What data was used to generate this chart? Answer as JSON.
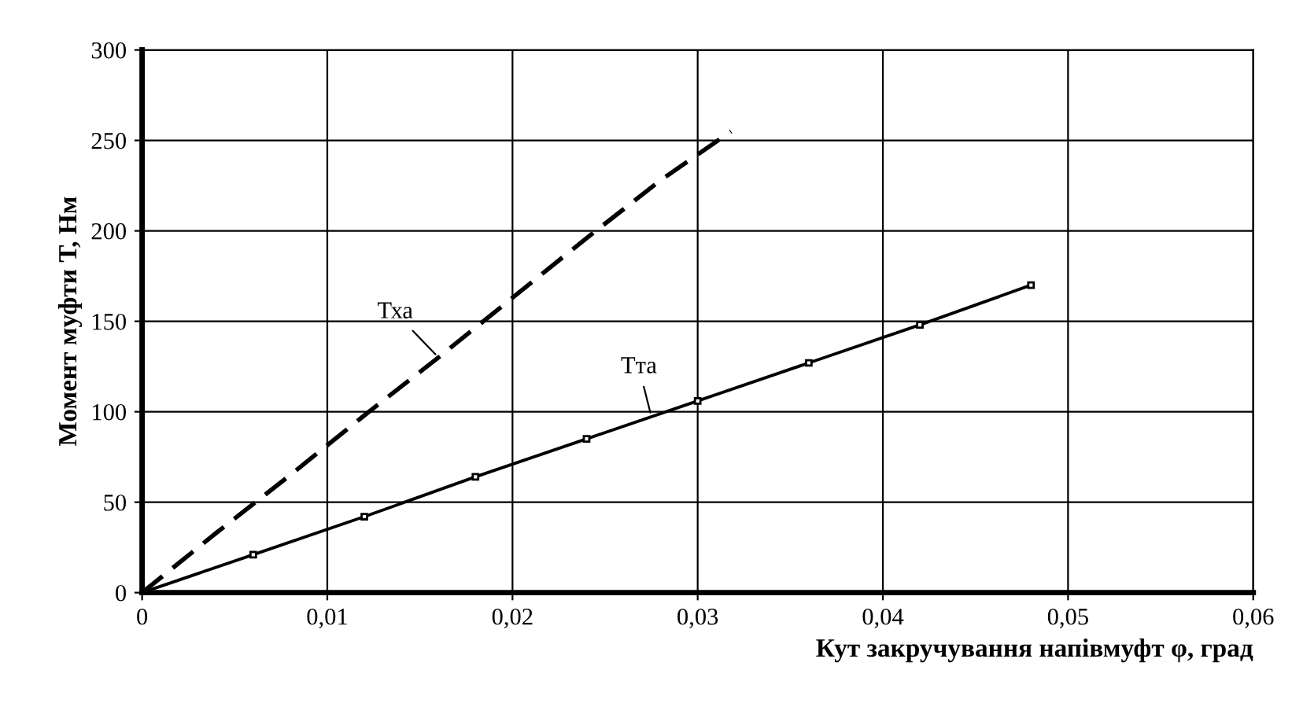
{
  "chart_data": {
    "type": "line",
    "xlabel": "Кут закручування напівмуфт φ, град",
    "ylabel": "Момент муфти Т, Нм",
    "series": [
      {
        "name": "Тха",
        "color": "#000000",
        "line_style": "dashed",
        "marker": "none",
        "x": [
          0,
          0.004,
          0.008,
          0.012,
          0.016,
          0.02,
          0.024,
          0.028,
          0.0318
        ],
        "values": [
          0,
          33,
          65,
          98,
          130,
          163,
          196,
          228,
          255
        ]
      },
      {
        "name": "Тта",
        "color": "#000000",
        "line_style": "solid",
        "marker": "square",
        "x": [
          0,
          0.006,
          0.012,
          0.018,
          0.024,
          0.03,
          0.036,
          0.042,
          0.048
        ],
        "values": [
          0,
          21,
          42,
          64,
          85,
          106,
          127,
          148,
          170
        ]
      }
    ],
    "xlim": [
      0,
      0.06
    ],
    "ylim": [
      0,
      300
    ],
    "xticks": [
      0,
      {
        "value": 0.01,
        "label": "0,01"
      },
      {
        "value": 0.02,
        "label": "0,02"
      },
      {
        "value": 0.03,
        "label": "0,03"
      },
      {
        "value": 0.04,
        "label": "0,04"
      },
      {
        "value": 0.05,
        "label": "0,05"
      },
      {
        "value": 0.06,
        "label": "0,06"
      }
    ],
    "yticks": [
      0,
      50,
      100,
      150,
      200,
      250,
      300
    ],
    "grid": true
  }
}
